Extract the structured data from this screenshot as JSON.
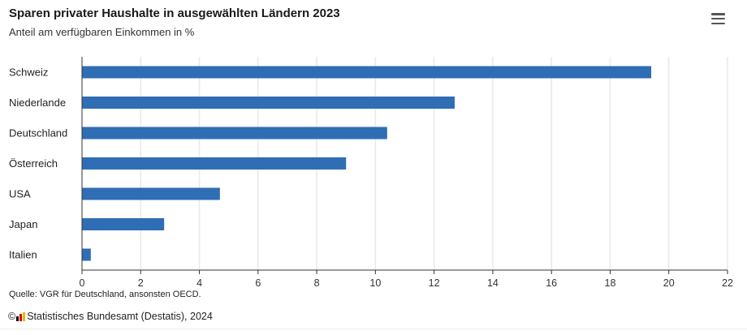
{
  "header": {
    "title": "Sparen privater Haushalte in ausgewählten Ländern 2023",
    "subtitle": "Anteil am verfügbaren Einkommen in %"
  },
  "footer": {
    "source": "Quelle: VGR für Deutschland, ansonsten OECD.",
    "copyright_symbol": "©",
    "copyright_text": "Statistisches Bundesamt (Destatis), 2024"
  },
  "icons": {
    "menu": "hamburger-menu-icon",
    "logo": "destatis-logo-icon"
  },
  "colors": {
    "bar": "#2f6db5",
    "grid": "#e9e9e9",
    "axis": "#333333"
  },
  "chart_data": {
    "type": "bar",
    "orientation": "horizontal",
    "categories": [
      "Schweiz",
      "Niederlande",
      "Deutschland",
      "Österreich",
      "USA",
      "Japan",
      "Italien"
    ],
    "values": [
      19.4,
      12.7,
      10.4,
      9.0,
      4.7,
      2.8,
      0.3
    ],
    "title": "Sparen privater Haushalte in ausgewählten Ländern 2023",
    "subtitle": "Anteil am verfügbaren Einkommen in %",
    "xlabel": "",
    "ylabel": "",
    "xlim": [
      0,
      22
    ],
    "xticks": [
      0,
      2,
      4,
      6,
      8,
      10,
      12,
      14,
      16,
      18,
      20,
      22
    ],
    "grid": true,
    "legend": "none"
  }
}
